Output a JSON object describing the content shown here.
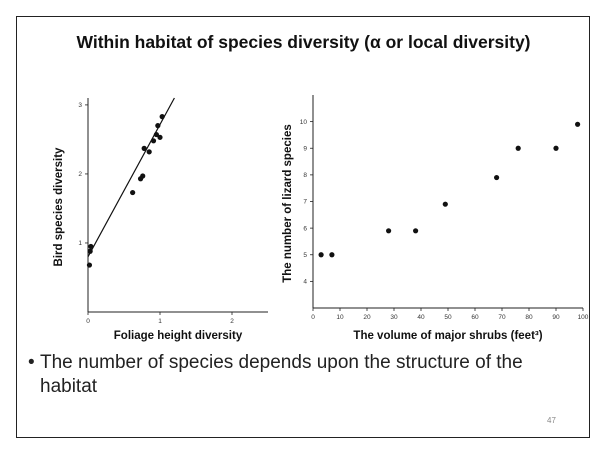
{
  "slide": {
    "title": "Within habitat of species diversity (α or local diversity)",
    "bullet_symbol": "•",
    "bullet_text": "The number of species depends upon the structure of the habitat",
    "page_number": "47"
  },
  "chart_data": [
    {
      "type": "scatter",
      "xlabel": "Foliage height diversity",
      "ylabel": "Bird species diversity",
      "xlim": [
        0,
        2.5
      ],
      "ylim": [
        0,
        3.1
      ],
      "x_ticks": [
        "0",
        "1",
        "2"
      ],
      "x_tick_values": [
        0,
        1,
        2
      ],
      "y_ticks": [
        "1",
        "2",
        "3"
      ],
      "y_tick_values": [
        1,
        2,
        3
      ],
      "grid": false,
      "points": [
        {
          "x": 0.02,
          "y": 0.68
        },
        {
          "x": 0.03,
          "y": 0.88
        },
        {
          "x": 0.04,
          "y": 0.95
        },
        {
          "x": 0.62,
          "y": 1.73
        },
        {
          "x": 0.73,
          "y": 1.93
        },
        {
          "x": 0.76,
          "y": 1.97
        },
        {
          "x": 0.78,
          "y": 2.37
        },
        {
          "x": 0.85,
          "y": 2.32
        },
        {
          "x": 0.91,
          "y": 2.48
        },
        {
          "x": 0.95,
          "y": 2.57
        },
        {
          "x": 0.97,
          "y": 2.7
        },
        {
          "x": 1.0,
          "y": 2.53
        },
        {
          "x": 1.03,
          "y": 2.83
        }
      ],
      "fit_line": {
        "x": [
          0,
          1.2
        ],
        "y": [
          0.8,
          3.1
        ]
      }
    },
    {
      "type": "scatter",
      "xlabel": "The volume of major shrubs (feet³)",
      "ylabel": "The number of lizard  species",
      "xlim": [
        0,
        100
      ],
      "ylim": [
        3,
        11
      ],
      "x_ticks": [
        "0",
        "10",
        "20",
        "30",
        "40",
        "50",
        "60",
        "70",
        "80",
        "90",
        "100"
      ],
      "x_tick_values": [
        0,
        10,
        20,
        30,
        40,
        50,
        60,
        70,
        80,
        90,
        100
      ],
      "y_ticks": [
        "4",
        "5",
        "6",
        "7",
        "8",
        "9",
        "10"
      ],
      "y_tick_values": [
        4,
        5,
        6,
        7,
        8,
        9,
        10
      ],
      "grid": false,
      "points": [
        {
          "x": 3,
          "y": 5
        },
        {
          "x": 7,
          "y": 5
        },
        {
          "x": 28,
          "y": 5.9
        },
        {
          "x": 38,
          "y": 5.9
        },
        {
          "x": 49,
          "y": 6.9
        },
        {
          "x": 68,
          "y": 7.9
        },
        {
          "x": 76,
          "y": 9
        },
        {
          "x": 90,
          "y": 9
        },
        {
          "x": 98,
          "y": 9.9
        }
      ]
    }
  ]
}
